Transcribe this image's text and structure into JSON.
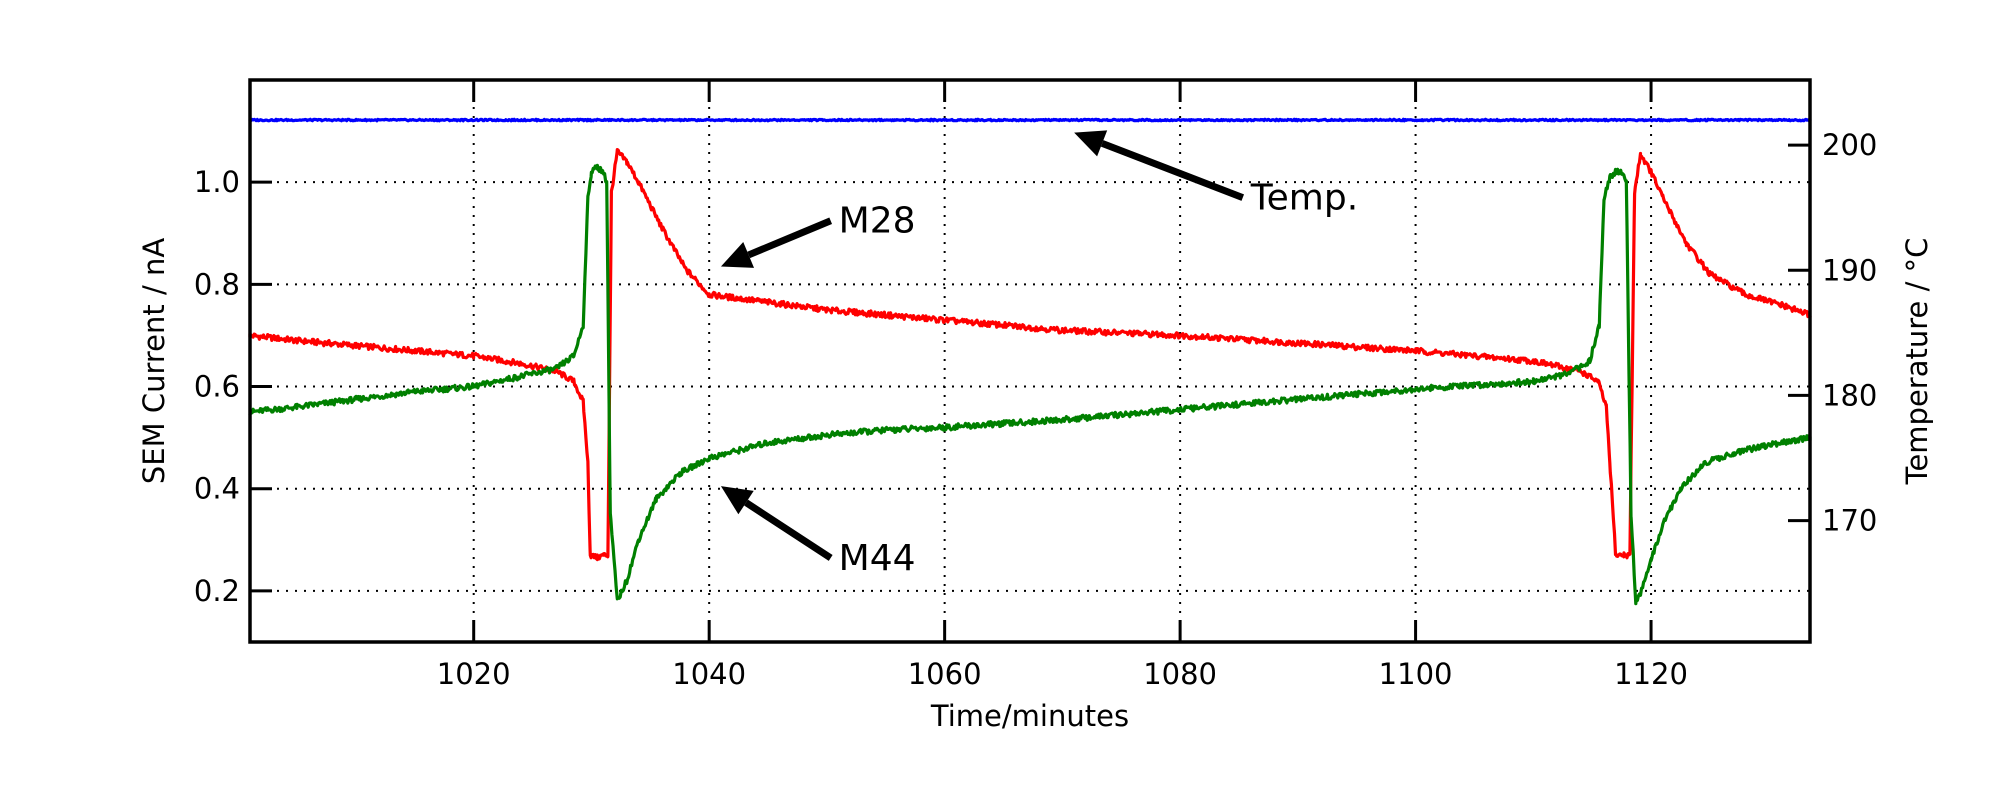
{
  "chart_data": {
    "type": "line",
    "title": "",
    "xlabel": "Time/minutes",
    "ylabel": "SEM Current / nA",
    "y2label": "Temperature / °C",
    "xlim": [
      1001,
      1133.5
    ],
    "ylim": [
      0.1,
      1.2
    ],
    "y2lim": [
      160.3,
      205.2
    ],
    "x_ticks": [
      1020,
      1040,
      1060,
      1080,
      1100,
      1120
    ],
    "y_ticks": [
      0.2,
      0.4,
      0.6,
      0.8,
      1.0
    ],
    "y2_ticks": [
      170,
      180,
      190,
      200
    ],
    "grid": true,
    "series": [
      {
        "id": "m28",
        "color": "#ff0000",
        "axis": "left",
        "x": [
          1001,
          1005,
          1010,
          1015,
          1020,
          1024,
          1027,
          1028.5,
          1029.3,
          1029.7,
          1029.9,
          1030.5,
          1031.0,
          1031.4,
          1031.7,
          1032.2,
          1033,
          1034,
          1036,
          1038,
          1040,
          1045,
          1050,
          1060,
          1070,
          1080,
          1090,
          1100,
          1110,
          1114,
          1115.5,
          1116.2,
          1116.5,
          1117,
          1117.7,
          1118.2,
          1118.6,
          1119.1,
          1120,
          1121,
          1123,
          1125,
          1128,
          1131,
          1133.5
        ],
        "y": [
          0.7,
          0.69,
          0.68,
          0.67,
          0.66,
          0.645,
          0.63,
          0.61,
          0.57,
          0.45,
          0.27,
          0.265,
          0.27,
          0.27,
          0.98,
          1.06,
          1.04,
          1.0,
          0.91,
          0.83,
          0.78,
          0.765,
          0.75,
          0.73,
          0.71,
          0.7,
          0.685,
          0.67,
          0.65,
          0.63,
          0.61,
          0.56,
          0.45,
          0.27,
          0.27,
          0.27,
          0.98,
          1.055,
          1.02,
          0.97,
          0.88,
          0.82,
          0.78,
          0.76,
          0.74
        ]
      },
      {
        "id": "m44",
        "color": "#008000",
        "axis": "left",
        "x": [
          1001,
          1005,
          1010,
          1015,
          1020,
          1024,
          1027,
          1028.5,
          1029.3,
          1029.7,
          1030.0,
          1030.5,
          1031.0,
          1031.3,
          1031.6,
          1032.2,
          1033,
          1034,
          1035.5,
          1037.5,
          1040,
          1045,
          1050,
          1055,
          1060,
          1070,
          1080,
          1090,
          1100,
          1110,
          1113,
          1114.8,
          1115.6,
          1116.0,
          1116.5,
          1117,
          1117.5,
          1117.9,
          1118.3,
          1118.7,
          1119.2,
          1120,
          1121,
          1122.5,
          1124.5,
          1127,
          1130,
          1133.5
        ],
        "y": [
          0.55,
          0.56,
          0.575,
          0.59,
          0.6,
          0.62,
          0.635,
          0.66,
          0.72,
          0.97,
          1.02,
          1.03,
          1.02,
          1.0,
          0.35,
          0.18,
          0.22,
          0.3,
          0.38,
          0.43,
          0.46,
          0.49,
          0.505,
          0.515,
          0.52,
          0.535,
          0.555,
          0.575,
          0.595,
          0.61,
          0.625,
          0.65,
          0.72,
          0.97,
          1.01,
          1.02,
          1.02,
          1.0,
          0.35,
          0.18,
          0.2,
          0.26,
          0.33,
          0.4,
          0.45,
          0.47,
          0.485,
          0.5
        ]
      },
      {
        "id": "temp",
        "color": "#0000ff",
        "axis": "right",
        "x": [
          1001,
          1133.5
        ],
        "y": [
          202.0,
          202.0
        ]
      }
    ],
    "annotations": [
      {
        "text": "M28",
        "target": [
          1041,
          0.835
        ],
        "text_at": [
          1051,
          0.905
        ]
      },
      {
        "text": "M44",
        "target": [
          1041,
          0.405
        ],
        "text_at": [
          1051,
          0.245
        ]
      },
      {
        "text": "Temp.",
        "target": [
          1071,
          201.0
        ],
        "text_at": [
          1086,
          195.0
        ]
      }
    ]
  }
}
